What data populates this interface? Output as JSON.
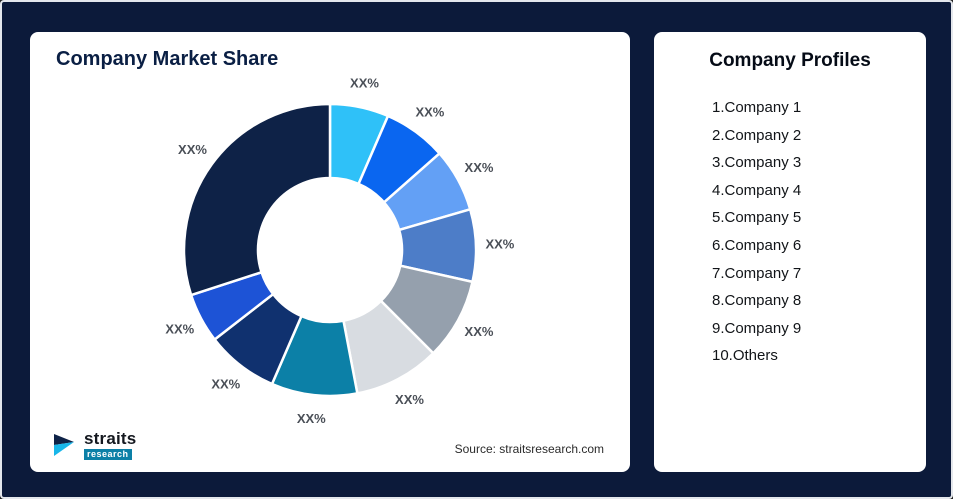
{
  "colors": {
    "background": "#0c1a3a",
    "card": "#ffffff",
    "title": "#0a1f44",
    "slice_label": "#4a4f57"
  },
  "market_share_card": {
    "title": "Company Market Share",
    "source_text": "Source: straitsresearch.com",
    "logo_text": "straits",
    "logo_subtext": "research"
  },
  "profiles_card": {
    "title": "Company Profiles",
    "items": [
      "1.Company 1",
      "2.Company 2",
      "3.Company 3",
      "4.Company 4",
      "5.Company 5",
      "6.Company 6",
      "7.Company 7",
      "8.Company 8",
      "9.Company 9",
      "10.Others"
    ]
  },
  "chart_data": {
    "type": "pie",
    "donut": true,
    "title": "Company Market Share",
    "legend_position": "none",
    "note": "All slice data labels display placeholder text XX%; values below are arc-angle estimates",
    "segments": [
      {
        "label": "XX%",
        "value": 6.5,
        "color": "#2fc1f8"
      },
      {
        "label": "XX%",
        "value": 7,
        "color": "#0a66f0"
      },
      {
        "label": "XX%",
        "value": 7,
        "color": "#63a0f5"
      },
      {
        "label": "XX%",
        "value": 8,
        "color": "#4d7dc8"
      },
      {
        "label": "XX%",
        "value": 9,
        "color": "#95a0ad"
      },
      {
        "label": "XX%",
        "value": 9.5,
        "color": "#d8dce1"
      },
      {
        "label": "XX%",
        "value": 9.5,
        "color": "#0c80a7"
      },
      {
        "label": "XX%",
        "value": 8,
        "color": "#10316f"
      },
      {
        "label": "XX%",
        "value": 5.5,
        "color": "#1d53d6"
      },
      {
        "label": "XX%",
        "value": 30,
        "color": "#0e2247"
      }
    ]
  }
}
